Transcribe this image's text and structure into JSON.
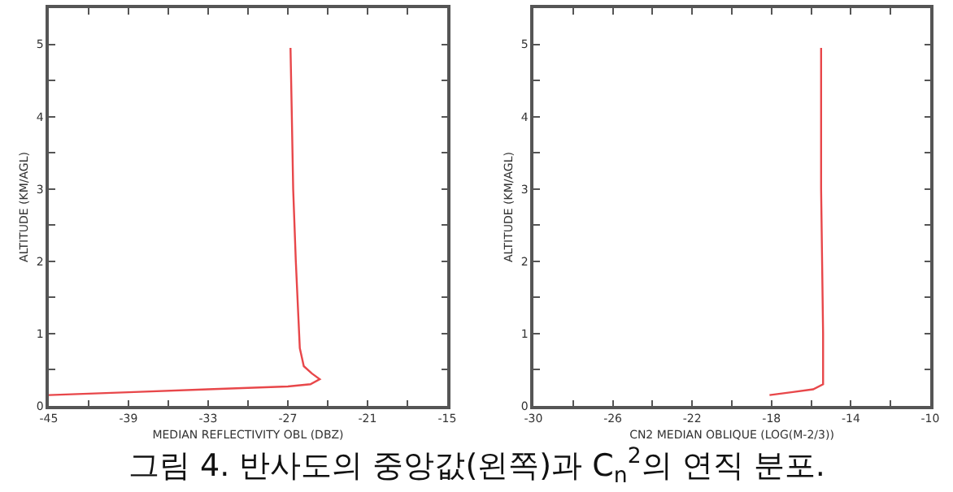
{
  "chart_data": [
    {
      "type": "line",
      "xlabel": "MEDIAN REFLECTIVITY OBL (DBZ)",
      "ylabel": "ALTITUDE (KM/AGL)",
      "xlim": [
        -45,
        -15
      ],
      "xticks": [
        -45,
        {
          "value": -42,
          "label": null
        },
        -39,
        {
          "value": -36,
          "label": null
        },
        -33,
        {
          "value": -30,
          "label": null
        },
        -27,
        {
          "value": -24,
          "label": null
        },
        -21,
        {
          "value": -18,
          "label": null
        },
        -15
      ],
      "ylim": [
        0,
        5.5
      ],
      "yticks": [
        0,
        {
          "value": 0.5,
          "label": null
        },
        1,
        {
          "value": 1.5,
          "label": null
        },
        2,
        {
          "value": 2.5,
          "label": null
        },
        3,
        {
          "value": 3.5,
          "label": null
        },
        4,
        {
          "value": 4.5,
          "label": null
        },
        5
      ],
      "marker": "none",
      "line_style": "solid",
      "series": [
        {
          "color": "#e8474a",
          "x": [
            -45,
            -39,
            -33,
            -27,
            -25.3,
            -24.6,
            -25.2,
            -25.8,
            -26.1,
            -26.2,
            -26.4,
            -26.6,
            -26.7,
            -26.8
          ],
          "values": [
            0.15,
            0.19,
            0.23,
            0.27,
            0.3,
            0.37,
            0.45,
            0.55,
            0.8,
            1.2,
            2,
            3,
            4,
            4.95
          ]
        }
      ],
      "annotations": [
        "그림 4. 반사도의 중앙값(왼쪽)과 C$_{n}$$^{2}$의 연직 분포."
      ]
    },
    {
      "type": "line",
      "xlabel": "CN2 MEDIAN OBLIQUE (LOG(M-2/3))",
      "ylabel": "ALTITUDE (KM/AGL)",
      "xlim": [
        -30,
        -10
      ],
      "xticks": [
        -30,
        {
          "value": -28,
          "label": null
        },
        -26,
        {
          "value": -24,
          "label": null
        },
        -22,
        {
          "value": -20,
          "label": null
        },
        -18,
        {
          "value": -16,
          "label": null
        },
        -14,
        {
          "value": -12,
          "label": null
        },
        -10
      ],
      "ylim": [
        0,
        5.5
      ],
      "yticks": [
        0,
        {
          "value": 0.5,
          "label": null
        },
        1,
        {
          "value": 1.5,
          "label": null
        },
        2,
        {
          "value": 2.5,
          "label": null
        },
        3,
        {
          "value": 3.5,
          "label": null
        },
        4,
        {
          "value": 4.5,
          "label": null
        },
        5
      ],
      "marker": "none",
      "line_style": "solid",
      "series": [
        {
          "color": "#e8474a",
          "x": [
            -18.1,
            -17,
            -15.9,
            -15.4,
            -15.4,
            -15.45,
            -15.5,
            -15.5,
            -15.5
          ],
          "values": [
            0.15,
            0.19,
            0.23,
            0.3,
            1,
            2,
            3,
            4,
            4.95
          ]
        }
      ]
    }
  ]
}
